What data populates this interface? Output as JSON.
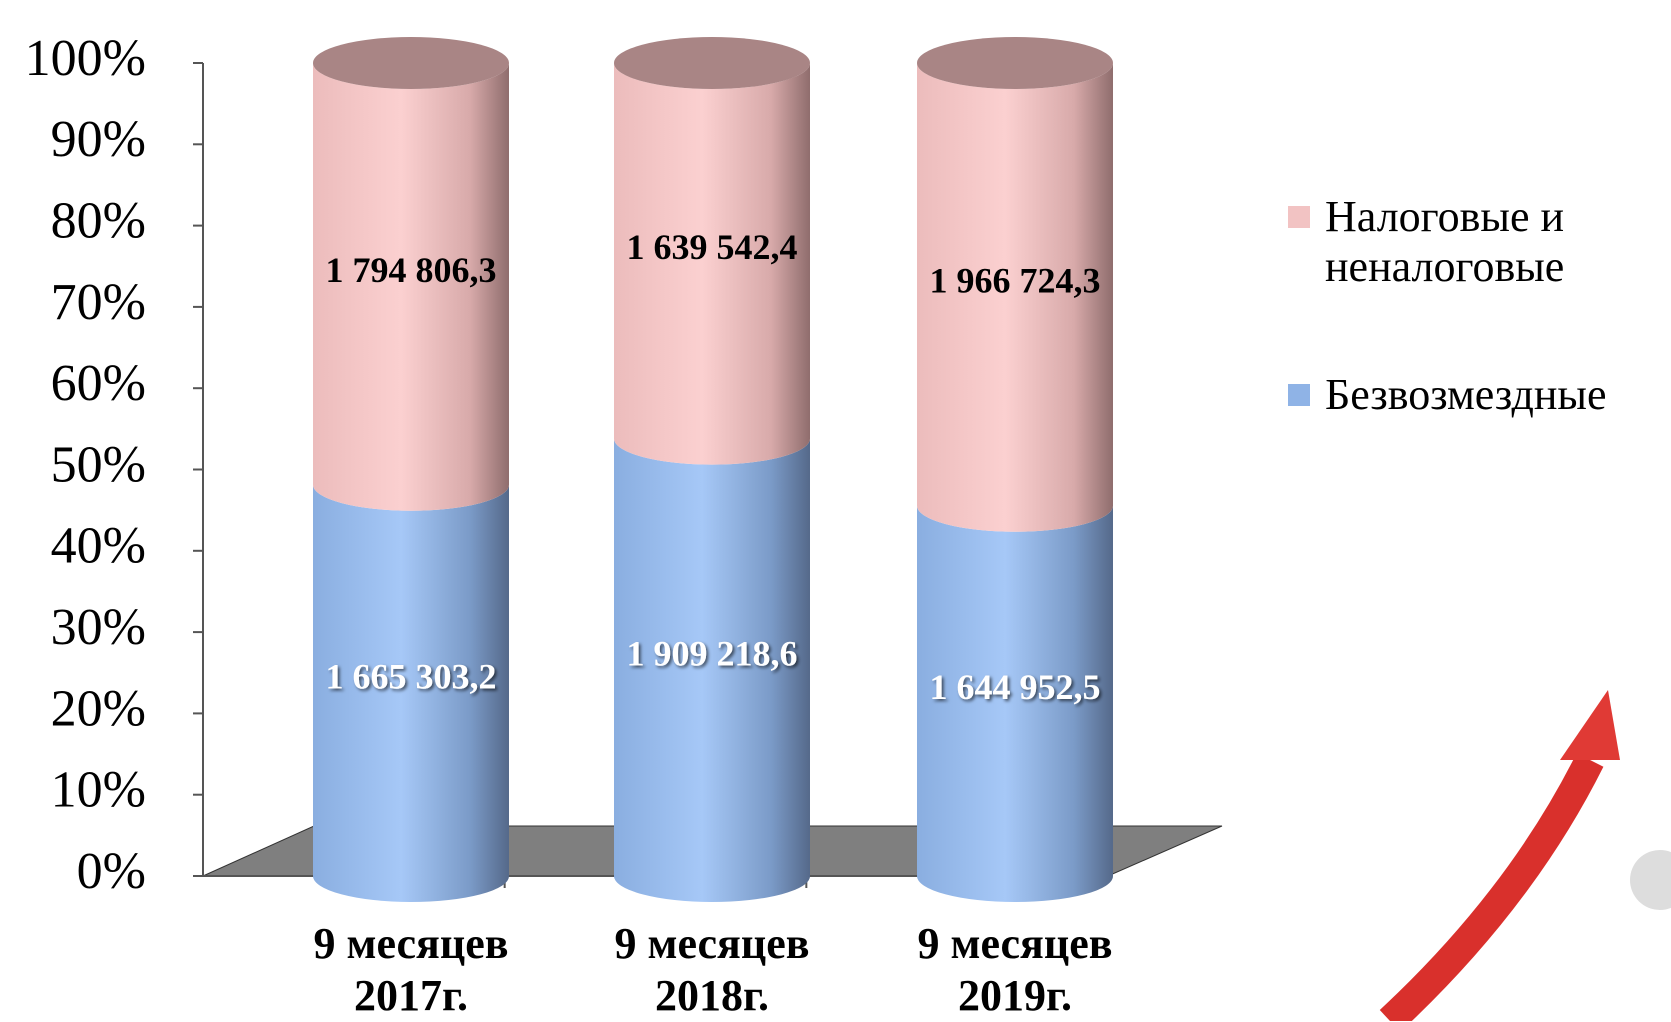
{
  "chart_data": {
    "type": "bar",
    "stacked": "percent",
    "categories": [
      "9 месяцев 2017г.",
      "9 месяцев 2018г.",
      "9 месяцев 2019г."
    ],
    "series": [
      {
        "name": "Безвозмездные",
        "color": "#8fb3e6",
        "values": [
          1665303.2,
          1909218.6,
          1644952.5
        ],
        "value_labels": [
          "1 665 303,2",
          "1 909 218,6",
          "1 644 952,5"
        ]
      },
      {
        "name": "Налоговые и неналоговые",
        "color": "#f2c3c3",
        "values": [
          1794806.3,
          1639542.4,
          1966724.3
        ],
        "value_labels": [
          "1 794 806,3",
          "1 639 542,4",
          "1 966 724,3"
        ]
      }
    ],
    "ylim": [
      0,
      100
    ],
    "yticks": [
      {
        "value": 0,
        "label": "0%"
      },
      {
        "value": 10,
        "label": "10%"
      },
      {
        "value": 20,
        "label": "20%"
      },
      {
        "value": 30,
        "label": "30%"
      },
      {
        "value": 40,
        "label": "40%"
      },
      {
        "value": 50,
        "label": "50%"
      },
      {
        "value": 60,
        "label": "60%"
      },
      {
        "value": 70,
        "label": "70%"
      },
      {
        "value": 80,
        "label": "80%"
      },
      {
        "value": 90,
        "label": "90%"
      },
      {
        "value": 100,
        "label": "100%"
      }
    ],
    "legend": "right"
  }
}
